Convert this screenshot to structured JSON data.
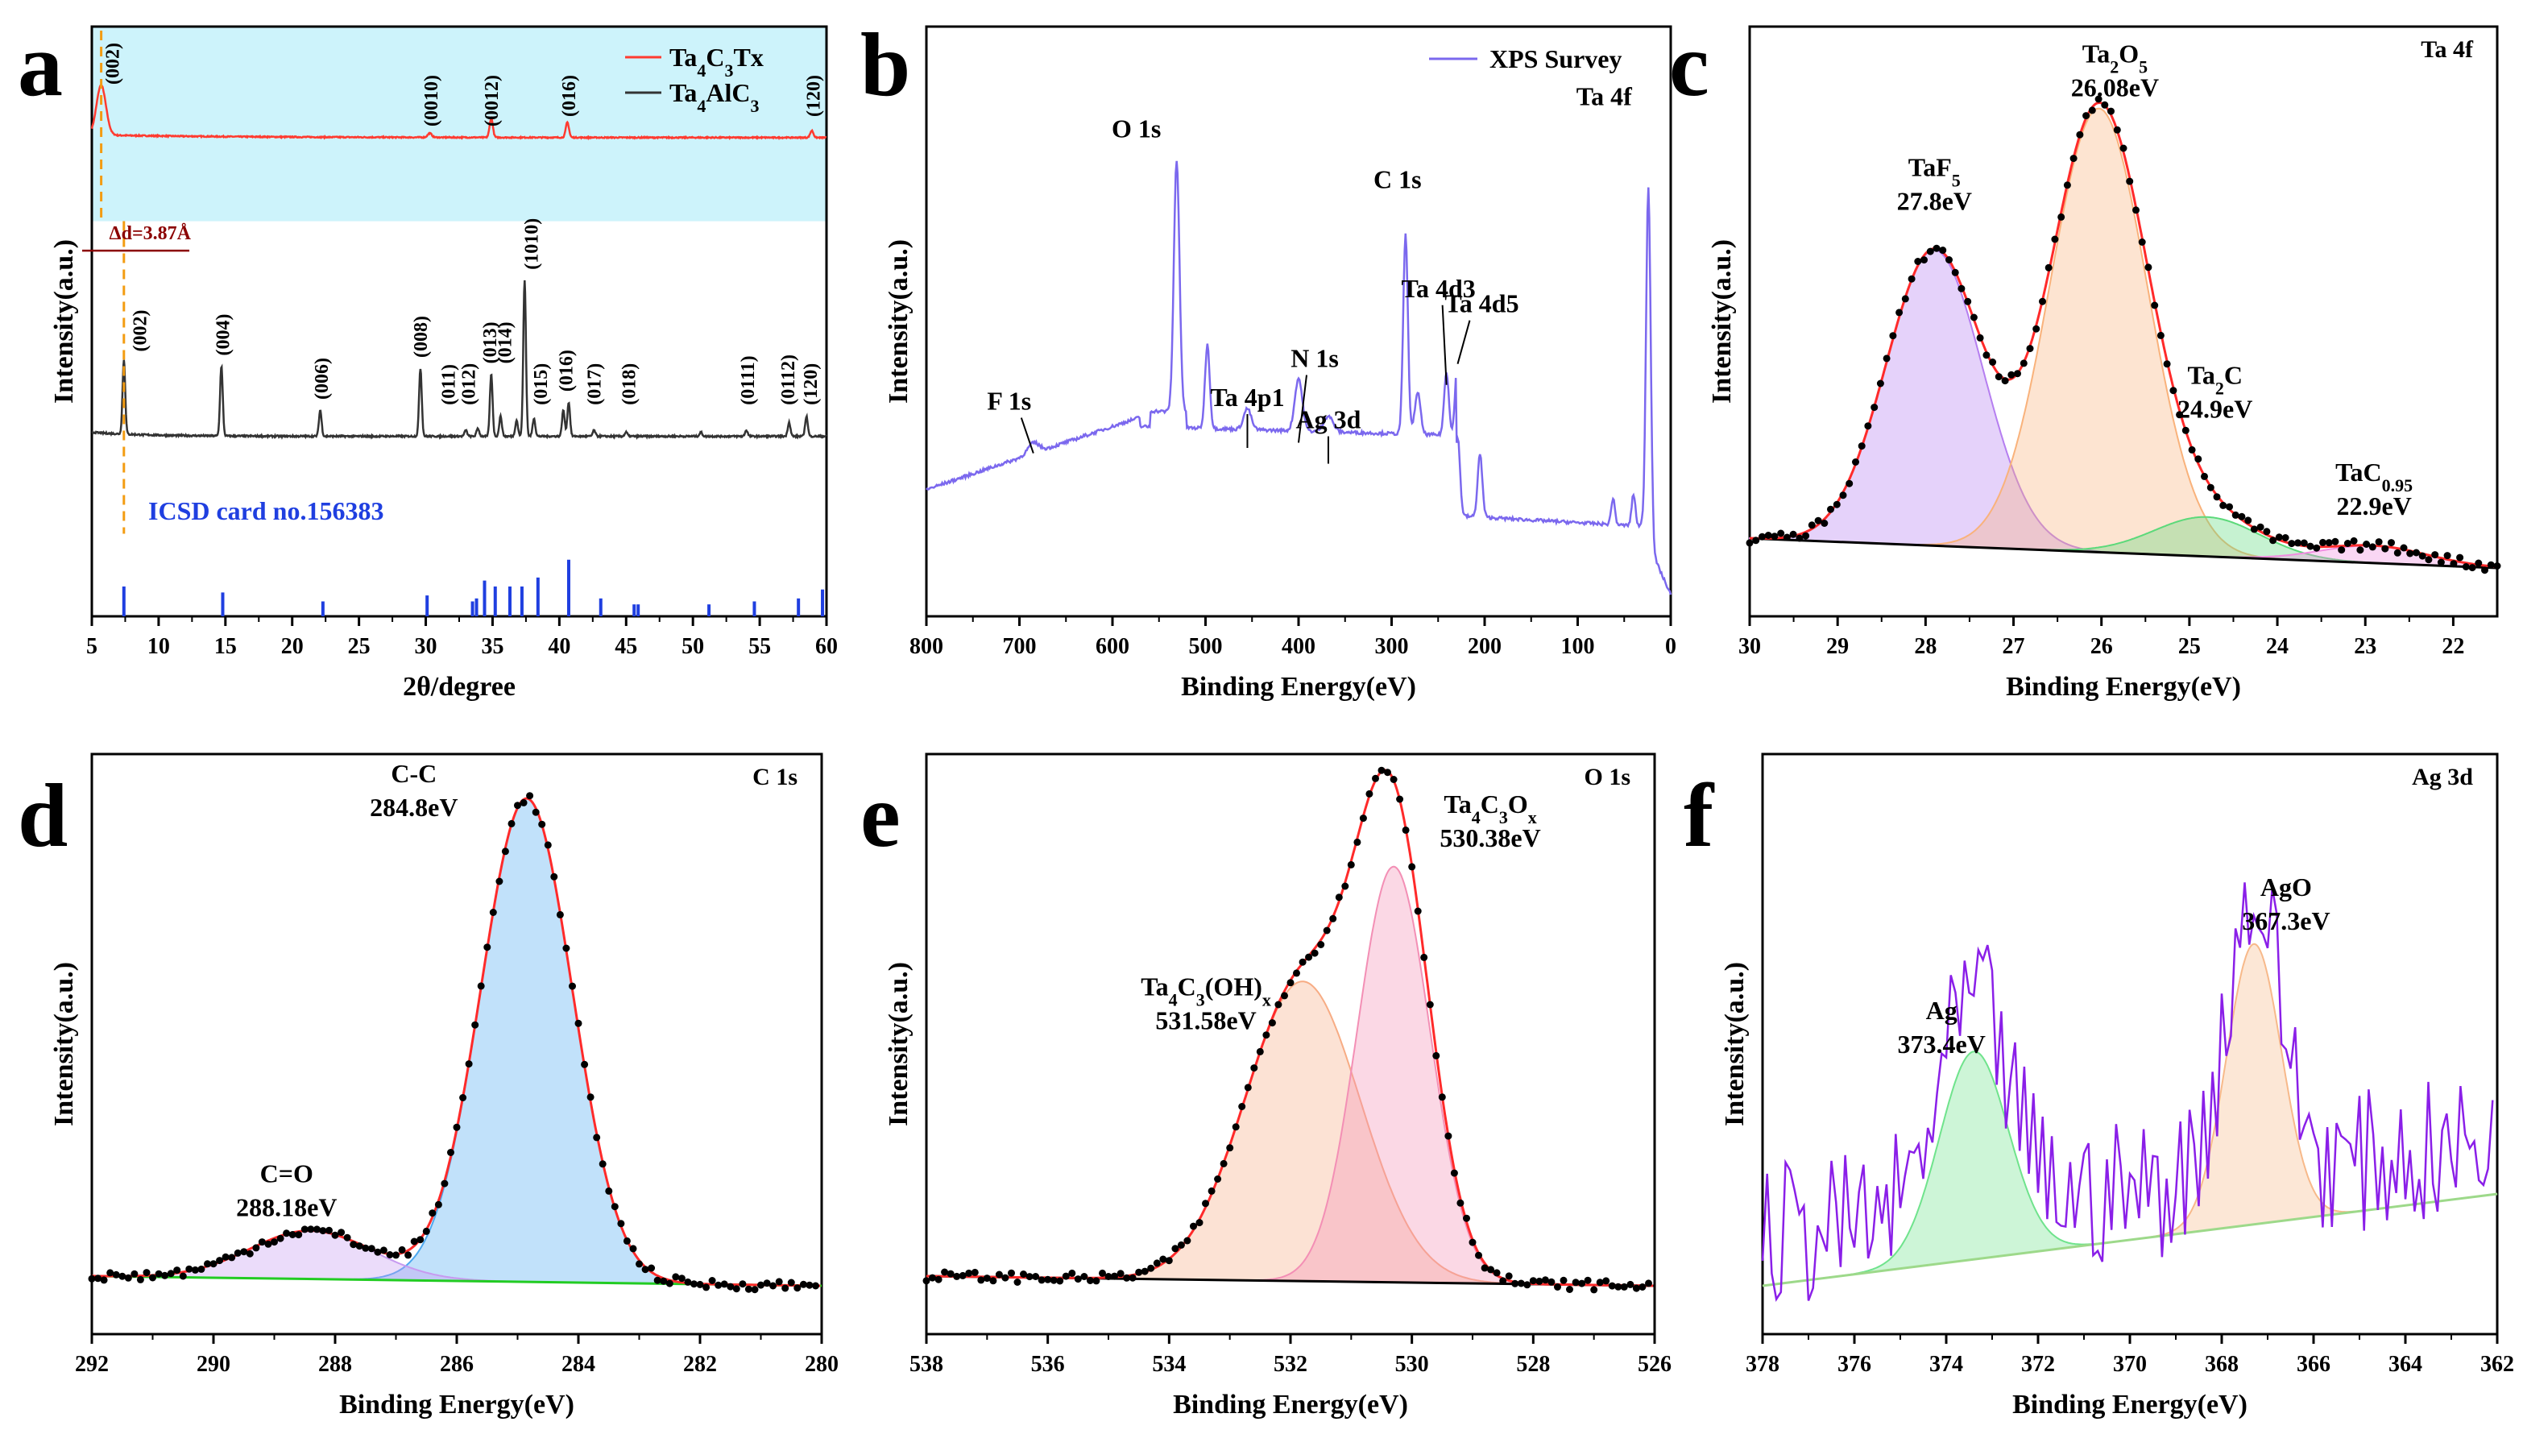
{
  "chart_data": [
    {
      "id": "a",
      "type": "line",
      "panel_label": "a",
      "xlabel": "2θ/degree",
      "ylabel": "Intensity(a.u.)",
      "xlim": [
        5,
        60
      ],
      "xticks": [
        5,
        10,
        15,
        20,
        25,
        30,
        35,
        40,
        45,
        50,
        55,
        60
      ],
      "legend": [
        "Ta4C3Tx",
        "Ta4AlC3"
      ],
      "series": [
        {
          "name": "Ta4C3Tx",
          "color": "#ff3b30",
          "baseline": 0.43,
          "peaks": [
            [
              5.7,
              0.36,
              0.35
            ],
            [
              30.3,
              0.03,
              0.15
            ],
            [
              34.9,
              0.14,
              0.12
            ],
            [
              40.6,
              0.11,
              0.12
            ],
            [
              58.9,
              0.05,
              0.12
            ]
          ]
        },
        {
          "name": "Ta4AlC3",
          "color": "#333333",
          "baseline": 0.045,
          "peaks": [
            [
              7.4,
              0.37,
              0.1
            ],
            [
              14.7,
              0.35,
              0.1
            ],
            [
              22.1,
              0.13,
              0.1
            ],
            [
              29.6,
              0.34,
              0.1
            ],
            [
              33.0,
              0.03,
              0.1
            ],
            [
              33.9,
              0.04,
              0.1
            ],
            [
              34.9,
              0.31,
              0.1
            ],
            [
              35.6,
              0.1,
              0.1
            ],
            [
              36.8,
              0.08,
              0.1
            ],
            [
              37.4,
              0.78,
              0.1
            ],
            [
              38.1,
              0.09,
              0.1
            ],
            [
              40.3,
              0.13,
              0.1
            ],
            [
              40.7,
              0.17,
              0.1
            ],
            [
              42.6,
              0.03,
              0.1
            ],
            [
              45.0,
              0.02,
              0.1
            ],
            [
              50.6,
              0.02,
              0.1
            ],
            [
              54.0,
              0.03,
              0.1
            ],
            [
              57.2,
              0.07,
              0.1
            ],
            [
              58.5,
              0.1,
              0.1
            ]
          ]
        }
      ],
      "ref_bars": {
        "label": "ICSD card no.156383",
        "color": "#1f3fe0",
        "positions": [
          7.4,
          14.8,
          22.3,
          30.1,
          33.5,
          33.8,
          34.4,
          35.2,
          36.3,
          37.2,
          38.4,
          40.7,
          43.1,
          45.6,
          45.9,
          51.2,
          54.6,
          57.9,
          59.7
        ],
        "heights": [
          1.0,
          0.8,
          0.5,
          0.7,
          0.5,
          0.6,
          1.2,
          1.0,
          1.0,
          1.0,
          1.3,
          1.9,
          0.6,
          0.4,
          0.4,
          0.4,
          0.5,
          0.6,
          0.9
        ]
      },
      "shift_label": "Δd=3.87Å",
      "hkl_red": [
        [
          5.7,
          "(002)"
        ],
        [
          30.4,
          "(0010)"
        ],
        [
          34.9,
          "(0012)"
        ],
        [
          40.7,
          "(016)"
        ],
        [
          59.0,
          "(120)"
        ]
      ],
      "hkl_black": [
        [
          8.6,
          "(002)"
        ],
        [
          14.8,
          "(004)"
        ],
        [
          22.2,
          "(006)"
        ],
        [
          29.6,
          "(008)"
        ],
        [
          31.7,
          "(011)"
        ],
        [
          33.2,
          "(012)"
        ],
        [
          34.8,
          "(013)"
        ],
        [
          35.9,
          "(014)"
        ],
        [
          37.9,
          "(1010)"
        ],
        [
          38.6,
          "(015)"
        ],
        [
          40.5,
          "(016)"
        ],
        [
          42.6,
          "(017)"
        ],
        [
          45.2,
          "(018)"
        ],
        [
          54.1,
          "(0111)"
        ],
        [
          57.1,
          "(0112)"
        ],
        [
          58.8,
          "(120)"
        ]
      ]
    },
    {
      "id": "b",
      "type": "line",
      "panel_label": "b",
      "xlabel": "Binding Energy(eV)",
      "ylabel": "Intensity(a.u.)",
      "xlim": [
        800,
        0
      ],
      "xticks": [
        800,
        700,
        600,
        500,
        400,
        300,
        200,
        100,
        0
      ],
      "legend": [
        "XPS Survey"
      ],
      "color": "#7b68ee",
      "annotations": [
        [
          685,
          "F 1s"
        ],
        [
          531,
          "O 1s"
        ],
        [
          455,
          "Ta 4p1"
        ],
        [
          400,
          "N 1s"
        ],
        [
          368,
          "Ag 3d"
        ],
        [
          285,
          "C 1s"
        ],
        [
          241,
          "Ta 4d3"
        ],
        [
          229,
          "Ta 4d5"
        ],
        [
          24,
          "Ta 4f"
        ]
      ]
    },
    {
      "id": "c",
      "type": "area",
      "panel_label": "c",
      "title": "Ta 4f",
      "xlabel": "Binding Energy(eV)",
      "ylabel": "Intensity(a.u.)",
      "xlim": [
        30,
        21.5
      ],
      "xticks": [
        30,
        29,
        28,
        27,
        26,
        25,
        24,
        23,
        22
      ],
      "components": [
        {
          "name": "TaF5",
          "label_main": "TaF",
          "label_sub": "5",
          "label_after": "",
          "be_label": "27.8eV",
          "center": 27.9,
          "amp": 0.6,
          "sigma": 0.55,
          "color": "#b57ef0"
        },
        {
          "name": "Ta2O5",
          "label_main": "Ta",
          "label_sub": "2",
          "label_after": "O",
          "label_sub2": "5",
          "be_label": "26.08eV",
          "center": 26.03,
          "amp": 0.9,
          "sigma": 0.55,
          "color": "#f9b27b"
        },
        {
          "name": "Ta2C",
          "label_main": "Ta",
          "label_sub": "2",
          "label_after": "C",
          "be_label": "24.9eV",
          "center": 24.8,
          "amp": 0.08,
          "sigma": 0.6,
          "color": "#5cd97a"
        },
        {
          "name": "TaC0.95",
          "label_main": "TaC",
          "label_sub": "0.95",
          "label_after": "",
          "be_label": "22.9eV",
          "center": 22.9,
          "amp": 0.035,
          "sigma": 0.6,
          "color": "#f08de0"
        }
      ],
      "background": [
        [
          30,
          0.06
        ],
        [
          21.5,
          0.0
        ]
      ]
    },
    {
      "id": "d",
      "type": "area",
      "panel_label": "d",
      "title": "C 1s",
      "xlabel": "Binding Energy(eV)",
      "ylabel": "Intensity(a.u.)",
      "xlim": [
        292,
        280
      ],
      "xticks": [
        292,
        290,
        288,
        286,
        284,
        282,
        280
      ],
      "components": [
        {
          "name": "C-C",
          "be_label": "284.8eV",
          "center": 284.85,
          "amp": 1.0,
          "sigma": 0.75,
          "color": "#4da8f0"
        },
        {
          "name": "C=O",
          "be_label": "288.18eV",
          "center": 288.4,
          "amp": 0.1,
          "sigma": 1.0,
          "color": "#c79af0"
        }
      ],
      "background": [
        [
          292,
          0.02
        ],
        [
          280,
          0.0
        ]
      ]
    },
    {
      "id": "e",
      "type": "area",
      "panel_label": "e",
      "title": "O 1s",
      "xlabel": "Binding Energy(eV)",
      "ylabel": "Intensity(a.u.)",
      "xlim": [
        538,
        526
      ],
      "xticks": [
        538,
        536,
        534,
        532,
        530,
        528,
        526
      ],
      "components": [
        {
          "name": "Ta4C3(OH)x",
          "label_main": "Ta",
          "label_sub": "4",
          "label_after": "C",
          "label_sub2": "3",
          "label_after2": "(OH)",
          "label_sub3": "x",
          "be_label": "531.58eV",
          "center": 531.8,
          "amp": 0.62,
          "sigma": 0.95,
          "color": "#f7ac84"
        },
        {
          "name": "Ta4C3Ox",
          "label_main": "Ta",
          "label_sub": "4",
          "label_after": "C",
          "label_sub2": "3",
          "label_after2": "O",
          "label_sub3": "x",
          "be_label": "530.38eV",
          "center": 530.3,
          "amp": 0.86,
          "sigma": 0.6,
          "color": "#f38fb5"
        }
      ],
      "background": [
        [
          538,
          0.02
        ],
        [
          526,
          0.0
        ]
      ]
    },
    {
      "id": "f",
      "type": "area",
      "panel_label": "f",
      "title": "Ag 3d",
      "xlabel": "Binding Energy(eV)",
      "ylabel": "Intensity(a.u.)",
      "xlim": [
        378,
        362
      ],
      "xticks": [
        378,
        376,
        374,
        372,
        370,
        368,
        366,
        364,
        362
      ],
      "components": [
        {
          "name": "Ag",
          "be_label": "373.4eV",
          "center": 373.4,
          "amp": 0.43,
          "sigma": 0.75,
          "color": "#6fe38c"
        },
        {
          "name": "AgO",
          "be_label": "367.3eV",
          "center": 367.3,
          "amp": 0.58,
          "sigma": 0.6,
          "color": "#f7b98a"
        }
      ],
      "background": [
        [
          378,
          0.0
        ],
        [
          362,
          0.19
        ]
      ],
      "data_color": "#8a1fe8"
    }
  ]
}
